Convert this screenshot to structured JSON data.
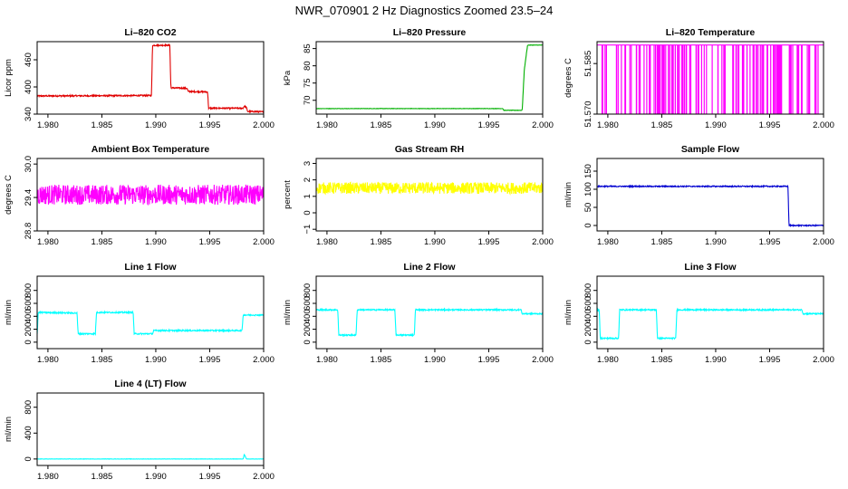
{
  "figure": {
    "title": "NWR_070901  2 Hz Diagnostics Zoomed 23.5–24"
  },
  "chart_data": [
    {
      "type": "line",
      "title": "Li–820 CO2",
      "xlabel": "",
      "ylabel": "Licor ppm",
      "xlim": [
        1.979,
        2.0
      ],
      "ylim": [
        340,
        500
      ],
      "xticks": [
        1.98,
        1.985,
        1.99,
        1.995,
        2.0
      ],
      "xtick_labels": [
        "1.980",
        "1.985",
        "1.990",
        "1.995",
        "2.000"
      ],
      "yticks": [
        340,
        400,
        460
      ],
      "ytick_labels": [
        "340",
        "400",
        "460"
      ],
      "color": "#e00000",
      "noise": 1.5,
      "series": [
        {
          "x": [
            1.979,
            1.9896,
            1.9897,
            1.9913,
            1.9914,
            1.9929,
            1.993,
            1.9948,
            1.9949,
            1.9981,
            1.9982,
            1.9984,
            1.9985,
            2.0
          ],
          "y": [
            380,
            381,
            492,
            492,
            398,
            397,
            390,
            389,
            353,
            353,
            358,
            355,
            346,
            345
          ]
        }
      ]
    },
    {
      "type": "line",
      "title": "Li–820 Pressure",
      "xlabel": "",
      "ylabel": "kPa",
      "xlim": [
        1.979,
        2.0
      ],
      "ylim": [
        66,
        87
      ],
      "xticks": [
        1.98,
        1.985,
        1.99,
        1.995,
        2.0
      ],
      "xtick_labels": [
        "1.980",
        "1.985",
        "1.990",
        "1.995",
        "2.000"
      ],
      "yticks": [
        70,
        75,
        80,
        85
      ],
      "ytick_labels": [
        "70",
        "75",
        "80",
        "85"
      ],
      "color": "#00b000",
      "noise": 0.05,
      "series": [
        {
          "x": [
            1.979,
            1.9963,
            1.9964,
            1.9981,
            1.9983,
            1.9986,
            2.0
          ],
          "y": [
            67.6,
            67.6,
            67.1,
            67.1,
            79.0,
            86.0,
            86.0
          ]
        }
      ]
    },
    {
      "type": "line",
      "title": "Li–820 Temperature",
      "xlabel": "",
      "ylabel": "degrees C",
      "xlim": [
        1.979,
        2.0
      ],
      "ylim": [
        51.57,
        51.5915
      ],
      "xticks": [
        1.98,
        1.985,
        1.99,
        1.995,
        2.0
      ],
      "xtick_labels": [
        "1.980",
        "1.985",
        "1.990",
        "1.995",
        "2.000"
      ],
      "yticks": [
        51.57,
        51.585
      ],
      "ytick_labels": [
        "51.570",
        "51.585"
      ],
      "color": "#ff00ff",
      "noise": 0,
      "high": 51.5905,
      "low": 51.5695,
      "series": []
    },
    {
      "type": "line",
      "title": "Ambient Box Temperature",
      "xlabel": "",
      "ylabel": "degrees C",
      "xlim": [
        1.979,
        2.0
      ],
      "ylim": [
        28.8,
        30.1
      ],
      "xticks": [
        1.98,
        1.985,
        1.99,
        1.995,
        2.0
      ],
      "xtick_labels": [
        "1.980",
        "1.985",
        "1.990",
        "1.995",
        "2.000"
      ],
      "yticks": [
        28.8,
        29.4,
        30.0
      ],
      "ytick_labels": [
        "28.8",
        "29.4",
        "30.0"
      ],
      "color": "#ff00ff",
      "noise": 0.18,
      "series": [
        {
          "x": [
            1.979,
            2.0
          ],
          "y": [
            29.45,
            29.45
          ]
        }
      ]
    },
    {
      "type": "line",
      "title": "Gas Stream RH",
      "xlabel": "",
      "ylabel": "percent",
      "xlim": [
        1.979,
        2.0
      ],
      "ylim": [
        -1.1,
        3.3
      ],
      "xticks": [
        1.98,
        1.985,
        1.99,
        1.995,
        2.0
      ],
      "xtick_labels": [
        "1.980",
        "1.985",
        "1.990",
        "1.995",
        "2.000"
      ],
      "yticks": [
        -1,
        0,
        1,
        2,
        3
      ],
      "ytick_labels": [
        "−1",
        "0",
        "1",
        "2",
        "3"
      ],
      "color": "#ffff00",
      "noise": 0.35,
      "series": [
        {
          "x": [
            1.979,
            2.0
          ],
          "y": [
            1.5,
            1.5
          ]
        }
      ]
    },
    {
      "type": "line",
      "title": "Sample Flow",
      "xlabel": "",
      "ylabel": "ml/min",
      "xlim": [
        1.979,
        2.0
      ],
      "ylim": [
        -15,
        185
      ],
      "xticks": [
        1.98,
        1.985,
        1.99,
        1.995,
        2.0
      ],
      "xtick_labels": [
        "1.980",
        "1.985",
        "1.990",
        "1.995",
        "2.000"
      ],
      "yticks": [
        0,
        50,
        100,
        150
      ],
      "ytick_labels": [
        "0",
        "50",
        "100",
        "150"
      ],
      "color": "#0000d0",
      "noise": 1.5,
      "series": [
        {
          "x": [
            1.979,
            1.9967,
            1.9968,
            2.0
          ],
          "y": [
            108,
            108,
            0,
            0
          ]
        }
      ]
    },
    {
      "type": "line",
      "title": "Line 1 Flow",
      "xlabel": "",
      "ylabel": "ml/min",
      "xlim": [
        1.979,
        2.0
      ],
      "ylim": [
        -100,
        1020
      ],
      "xticks": [
        1.98,
        1.985,
        1.99,
        1.995,
        2.0
      ],
      "xtick_labels": [
        "1.980",
        "1.985",
        "1.990",
        "1.995",
        "2.000"
      ],
      "yticks": [
        0,
        200,
        400,
        600,
        800
      ],
      "ytick_labels": [
        "0",
        "200",
        "400",
        "600",
        "800"
      ],
      "color": "#00ffff",
      "noise": 10,
      "series": [
        {
          "x": [
            1.979,
            1.9791,
            1.9827,
            1.9828,
            1.9844,
            1.9845,
            1.9879,
            1.988,
            1.9897,
            1.9898,
            1.998,
            1.9981,
            2.0
          ],
          "y": [
            120,
            460,
            450,
            130,
            130,
            460,
            460,
            130,
            130,
            180,
            180,
            420,
            420
          ]
        }
      ]
    },
    {
      "type": "line",
      "title": "Line 2 Flow",
      "xlabel": "",
      "ylabel": "ml/min",
      "xlim": [
        1.979,
        2.0
      ],
      "ylim": [
        -100,
        1020
      ],
      "xticks": [
        1.98,
        1.985,
        1.99,
        1.995,
        2.0
      ],
      "xtick_labels": [
        "1.980",
        "1.985",
        "1.990",
        "1.995",
        "2.000"
      ],
      "yticks": [
        0,
        200,
        400,
        600,
        800
      ],
      "ytick_labels": [
        "0",
        "200",
        "400",
        "600",
        "800"
      ],
      "color": "#00ffff",
      "noise": 10,
      "series": [
        {
          "x": [
            1.979,
            1.981,
            1.9811,
            1.9827,
            1.9828,
            1.9863,
            1.9864,
            1.9881,
            1.9882,
            1.998,
            1.9981,
            2.0
          ],
          "y": [
            500,
            500,
            110,
            110,
            500,
            500,
            110,
            110,
            500,
            500,
            440,
            440
          ]
        }
      ]
    },
    {
      "type": "line",
      "title": "Line 3 Flow",
      "xlabel": "",
      "ylabel": "ml/min",
      "xlim": [
        1.979,
        2.0
      ],
      "ylim": [
        -100,
        1020
      ],
      "xticks": [
        1.98,
        1.985,
        1.99,
        1.995,
        2.0
      ],
      "xtick_labels": [
        "1.980",
        "1.985",
        "1.990",
        "1.995",
        "2.000"
      ],
      "yticks": [
        0,
        200,
        400,
        600,
        800
      ],
      "ytick_labels": [
        "0",
        "200",
        "400",
        "600",
        "800"
      ],
      "color": "#00ffff",
      "noise": 10,
      "series": [
        {
          "x": [
            1.979,
            1.9792,
            1.9793,
            1.981,
            1.9811,
            1.9845,
            1.9846,
            1.9863,
            1.9864,
            1.998,
            1.9981,
            2.0
          ],
          "y": [
            500,
            500,
            60,
            60,
            500,
            500,
            60,
            60,
            500,
            500,
            440,
            440
          ]
        }
      ]
    },
    {
      "type": "line",
      "title": "Line 4 (LT) Flow",
      "xlabel": "",
      "ylabel": "ml/min",
      "xlim": [
        1.979,
        2.0
      ],
      "ylim": [
        -100,
        1020
      ],
      "xticks": [
        1.98,
        1.985,
        1.99,
        1.995,
        2.0
      ],
      "xtick_labels": [
        "1.980",
        "1.985",
        "1.990",
        "1.995",
        "2.000"
      ],
      "yticks": [
        0,
        400,
        800
      ],
      "ytick_labels": [
        "0",
        "400",
        "800"
      ],
      "color": "#00ffff",
      "noise": 2,
      "series": [
        {
          "x": [
            1.979,
            1.9981,
            1.9982,
            1.9983,
            1.9984,
            2.0
          ],
          "y": [
            0,
            0,
            70,
            40,
            0,
            0
          ]
        }
      ]
    }
  ]
}
